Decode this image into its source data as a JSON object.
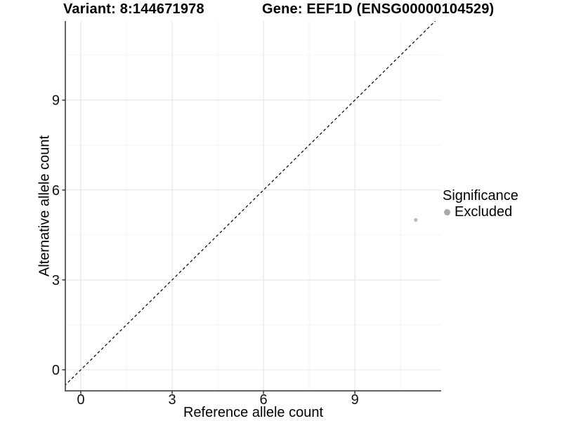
{
  "chart_data": {
    "type": "scatter",
    "titles": {
      "left": "Variant: 8:144671978",
      "right": "Gene: EEF1D (ENSG00000104529)"
    },
    "xlabel": "Reference allele count",
    "ylabel": "Alternative allele count",
    "xlim": [
      -0.5,
      11.8
    ],
    "ylim": [
      -0.7,
      11.6
    ],
    "x_major_ticks": [
      0,
      3,
      6,
      9
    ],
    "y_major_ticks": [
      0,
      3,
      6,
      9
    ],
    "x_minor_ticks": [
      1.5,
      4.5,
      7.5,
      10.5
    ],
    "y_minor_ticks": [
      1.5,
      4.5,
      7.5,
      10.5
    ],
    "grid": "major+minor",
    "legend_position": "right",
    "reference_line": {
      "type": "abline",
      "slope": 1,
      "intercept": 0,
      "style": "dashed",
      "color": "#000000"
    },
    "series": [
      {
        "name": "Excluded",
        "color": "#b9b9b9",
        "marker": "circle",
        "points": [
          {
            "x": 11,
            "y": 5
          }
        ]
      }
    ],
    "legend": {
      "title": "Significance",
      "entries": [
        {
          "label": "Excluded",
          "color": "#a9a9a9",
          "marker": "circle"
        }
      ]
    }
  },
  "colors": {
    "background": "#ffffff",
    "grid_major": "#e4e4e4",
    "grid_minor": "#f2f2f2",
    "axis": "#333333",
    "tick_text": "#111111",
    "point": "#b9b9b9"
  }
}
